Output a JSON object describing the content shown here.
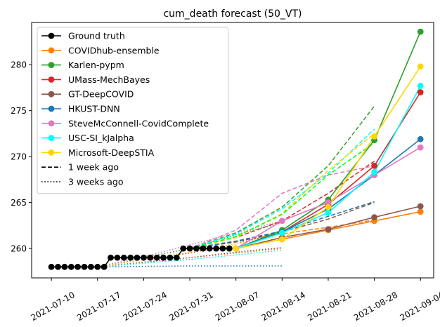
{
  "chart_data": {
    "type": "line",
    "title": "cum_death forecast (50_VT)",
    "xlabel": "",
    "ylabel": "",
    "xlim": [
      "2021-07-07",
      "2021-09-06"
    ],
    "ylim": [
      256.8,
      284.6
    ],
    "x_ticks": [
      "2021-07-10",
      "2021-07-17",
      "2021-07-24",
      "2021-07-31",
      "2021-08-07",
      "2021-08-14",
      "2021-08-21",
      "2021-08-28",
      "2021-09-04"
    ],
    "y_ticks": [
      260,
      265,
      270,
      275,
      280
    ],
    "grid": false,
    "legend_position": "top-left",
    "legend": [
      {
        "label": "Ground truth",
        "color": "#000000",
        "style": "marker"
      },
      {
        "label": "COVIDhub-ensemble",
        "color": "#ff7f0e",
        "style": "marker"
      },
      {
        "label": "Karlen-pypm",
        "color": "#2ca02c",
        "style": "marker"
      },
      {
        "label": "UMass-MechBayes",
        "color": "#d62728",
        "style": "marker"
      },
      {
        "label": "GT-DeepCOVID",
        "color": "#8c564b",
        "style": "marker"
      },
      {
        "label": "HKUST-DNN",
        "color": "#1f77b4",
        "style": "marker"
      },
      {
        "label": "SteveMcConnell-CovidComplete",
        "color": "#e377c2",
        "style": "marker"
      },
      {
        "label": "USC-SI_kJalpha",
        "color": "#00ffff",
        "style": "marker"
      },
      {
        "label": "Microsoft-DeepSTIA",
        "color": "#ffd700",
        "style": "marker"
      },
      {
        "label": "1 week ago",
        "color": "#000000",
        "style": "dashed"
      },
      {
        "label": "3 weeks ago",
        "color": "#000000",
        "style": "dotted"
      }
    ],
    "ground_truth": {
      "name": "Ground truth",
      "color": "#000000",
      "x": [
        "2021-07-10",
        "2021-07-11",
        "2021-07-12",
        "2021-07-13",
        "2021-07-14",
        "2021-07-15",
        "2021-07-16",
        "2021-07-17",
        "2021-07-18",
        "2021-07-19",
        "2021-07-20",
        "2021-07-21",
        "2021-07-22",
        "2021-07-23",
        "2021-07-24",
        "2021-07-25",
        "2021-07-26",
        "2021-07-27",
        "2021-07-28",
        "2021-07-29",
        "2021-07-30",
        "2021-07-31",
        "2021-08-01",
        "2021-08-02",
        "2021-08-03",
        "2021-08-04",
        "2021-08-05",
        "2021-08-06"
      ],
      "y": [
        258,
        258,
        258,
        258,
        258,
        258,
        258,
        258,
        258,
        259,
        259,
        259,
        259,
        259,
        259,
        259,
        259,
        259,
        259,
        259,
        260,
        260,
        260,
        260,
        260,
        260,
        260,
        260
      ]
    },
    "series": [
      {
        "name": "COVIDhub-ensemble",
        "color": "#ff7f0e",
        "style": "solid",
        "marker": true,
        "x": [
          "2021-08-07",
          "2021-08-14",
          "2021-08-21",
          "2021-08-28",
          "2021-09-04"
        ],
        "y": [
          260,
          261,
          262,
          263,
          264
        ]
      },
      {
        "name": "Karlen-pypm",
        "color": "#2ca02c",
        "style": "solid",
        "marker": true,
        "x": [
          "2021-08-07",
          "2021-08-14",
          "2021-08-21",
          "2021-08-28",
          "2021-09-04"
        ],
        "y": [
          260,
          262,
          265.3,
          271.8,
          283.6
        ]
      },
      {
        "name": "UMass-MechBayes",
        "color": "#d62728",
        "style": "solid",
        "marker": true,
        "x": [
          "2021-08-07",
          "2021-08-14",
          "2021-08-21",
          "2021-08-28",
          "2021-09-04"
        ],
        "y": [
          260,
          261.8,
          264.8,
          269,
          277
        ]
      },
      {
        "name": "GT-DeepCOVID",
        "color": "#8c564b",
        "style": "solid",
        "marker": true,
        "x": [
          "2021-08-07",
          "2021-08-14",
          "2021-08-21",
          "2021-08-28",
          "2021-09-04"
        ],
        "y": [
          260,
          261.2,
          262.1,
          263.4,
          264.6
        ]
      },
      {
        "name": "HKUST-DNN",
        "color": "#1f77b4",
        "style": "solid",
        "marker": true,
        "x": [
          "2021-08-07",
          "2021-08-14",
          "2021-08-21",
          "2021-08-28",
          "2021-09-04"
        ],
        "y": [
          260,
          261.8,
          264.3,
          268,
          271.9
        ]
      },
      {
        "name": "SteveMcConnell-CovidComplete",
        "color": "#e377c2",
        "style": "solid",
        "marker": true,
        "x": [
          "2021-08-07",
          "2021-08-14",
          "2021-08-21",
          "2021-08-28",
          "2021-09-04"
        ],
        "y": [
          260,
          263,
          265,
          268,
          271
        ]
      },
      {
        "name": "USC-SI_kJalpha",
        "color": "#00ffff",
        "style": "solid",
        "marker": true,
        "x": [
          "2021-08-07",
          "2021-08-14",
          "2021-08-21",
          "2021-08-28",
          "2021-09-04"
        ],
        "y": [
          260,
          261.7,
          263.9,
          268.3,
          277.7
        ]
      },
      {
        "name": "Microsoft-DeepSTIA",
        "color": "#ffd700",
        "style": "solid",
        "marker": true,
        "x": [
          "2021-08-07",
          "2021-08-14",
          "2021-08-21",
          "2021-08-28",
          "2021-09-04"
        ],
        "y": [
          260,
          261,
          264.5,
          272.2,
          279.8
        ]
      },
      {
        "name": "COVIDhub-ensemble",
        "color": "#ff7f0e",
        "style": "dashed",
        "marker": false,
        "x": [
          "2021-07-31",
          "2021-08-07",
          "2021-08-14",
          "2021-08-21",
          "2021-08-28"
        ],
        "y": [
          260,
          260.8,
          261.6,
          262.3,
          263.1
        ]
      },
      {
        "name": "Karlen-pypm",
        "color": "#2ca02c",
        "style": "dashed",
        "marker": false,
        "x": [
          "2021-07-31",
          "2021-08-07",
          "2021-08-14",
          "2021-08-21",
          "2021-08-28"
        ],
        "y": [
          260,
          261.7,
          264.5,
          269,
          275.5
        ]
      },
      {
        "name": "UMass-MechBayes",
        "color": "#d62728",
        "style": "dashed",
        "marker": false,
        "x": [
          "2021-07-31",
          "2021-08-07",
          "2021-08-14",
          "2021-08-21",
          "2021-08-28"
        ],
        "y": [
          260,
          261.2,
          263,
          266,
          269.5
        ]
      },
      {
        "name": "GT-DeepCOVID",
        "color": "#8c564b",
        "style": "dashed",
        "marker": false,
        "x": [
          "2021-07-31",
          "2021-08-07",
          "2021-08-14",
          "2021-08-21",
          "2021-08-28"
        ],
        "y": [
          260,
          260.7,
          261.8,
          263.2,
          265
        ]
      },
      {
        "name": "HKUST-DNN",
        "color": "#1f77b4",
        "style": "dashed",
        "marker": false,
        "x": [
          "2021-07-31",
          "2021-08-07",
          "2021-08-14",
          "2021-08-21",
          "2021-08-28"
        ],
        "y": [
          260,
          260.8,
          261.9,
          263.5,
          265.1
        ]
      },
      {
        "name": "SteveMcConnell-CovidComplete",
        "color": "#e377c2",
        "style": "dashed",
        "marker": false,
        "x": [
          "2021-07-31",
          "2021-08-07",
          "2021-08-14",
          "2021-08-21",
          "2021-08-28"
        ],
        "y": [
          260,
          262,
          266,
          268,
          269
        ]
      },
      {
        "name": "USC-SI_kJalpha",
        "color": "#00ffff",
        "style": "dashed",
        "marker": false,
        "x": [
          "2021-07-31",
          "2021-08-07",
          "2021-08-14",
          "2021-08-21",
          "2021-08-28"
        ],
        "y": [
          260,
          261.6,
          264.3,
          268.2,
          273
        ]
      },
      {
        "name": "Microsoft-DeepSTIA",
        "color": "#ffd700",
        "style": "dashed",
        "marker": false,
        "x": [
          "2021-07-31",
          "2021-08-07",
          "2021-08-14",
          "2021-08-21",
          "2021-08-28"
        ],
        "y": [
          260,
          261.2,
          263.8,
          268.5,
          272.5
        ]
      },
      {
        "name": "",
        "color": "#00ff00",
        "style": "dashed",
        "marker": false,
        "x": [
          "2021-07-31",
          "2021-08-07",
          "2021-08-14",
          "2021-08-21",
          "2021-08-28"
        ],
        "y": [
          260,
          261.3,
          263.7,
          268,
          271.5
        ]
      },
      {
        "name": "COVIDhub-ensemble",
        "color": "#ff7f0e",
        "style": "dotted",
        "marker": false,
        "x": [
          "2021-07-17",
          "2021-07-24",
          "2021-07-31",
          "2021-08-07",
          "2021-08-14"
        ],
        "y": [
          258,
          258.5,
          259,
          259.5,
          260
        ]
      },
      {
        "name": "Karlen-pypm",
        "color": "#2ca02c",
        "style": "dotted",
        "marker": false,
        "x": [
          "2021-07-17",
          "2021-07-24",
          "2021-07-31",
          "2021-08-07",
          "2021-08-14"
        ],
        "y": [
          258,
          259,
          260,
          261.5,
          262.8
        ]
      },
      {
        "name": "UMass-MechBayes",
        "color": "#d62728",
        "style": "dotted",
        "marker": false,
        "x": [
          "2021-07-17",
          "2021-07-24",
          "2021-07-31",
          "2021-08-07",
          "2021-08-14"
        ],
        "y": [
          258,
          258.8,
          259.5,
          260.5,
          261.8
        ]
      },
      {
        "name": "GT-DeepCOVID",
        "color": "#8c564b",
        "style": "dotted",
        "marker": false,
        "x": [
          "2021-07-17",
          "2021-07-24",
          "2021-07-31",
          "2021-08-07",
          "2021-08-14"
        ],
        "y": [
          258,
          258.5,
          259,
          259.6,
          260.1
        ]
      },
      {
        "name": "HKUST-DNN",
        "color": "#1f77b4",
        "style": "dotted",
        "marker": false,
        "x": [
          "2021-07-17",
          "2021-07-24",
          "2021-07-31",
          "2021-08-07",
          "2021-08-14"
        ],
        "y": [
          258,
          258.05,
          258.1,
          258.1,
          258.1
        ]
      },
      {
        "name": "SteveMcConnell-CovidComplete",
        "color": "#e377c2",
        "style": "dotted",
        "marker": false,
        "x": [
          "2021-07-17",
          "2021-07-24",
          "2021-07-31",
          "2021-08-07",
          "2021-08-14"
        ],
        "y": [
          258,
          259.1,
          260.4,
          261.7,
          263
        ]
      },
      {
        "name": "USC-SI_kJalpha",
        "color": "#00ffff",
        "style": "dotted",
        "marker": false,
        "x": [
          "2021-07-17",
          "2021-07-24",
          "2021-07-31",
          "2021-08-07",
          "2021-08-14"
        ],
        "y": [
          258,
          258.4,
          258.8,
          259.3,
          259.8
        ]
      },
      {
        "name": "Microsoft-DeepSTIA",
        "color": "#ffd700",
        "style": "dotted",
        "marker": false,
        "x": [
          "2021-07-17",
          "2021-07-24",
          "2021-07-31",
          "2021-08-07",
          "2021-08-14"
        ],
        "y": [
          258,
          258.8,
          259.6,
          260.5,
          261.4
        ]
      }
    ]
  }
}
